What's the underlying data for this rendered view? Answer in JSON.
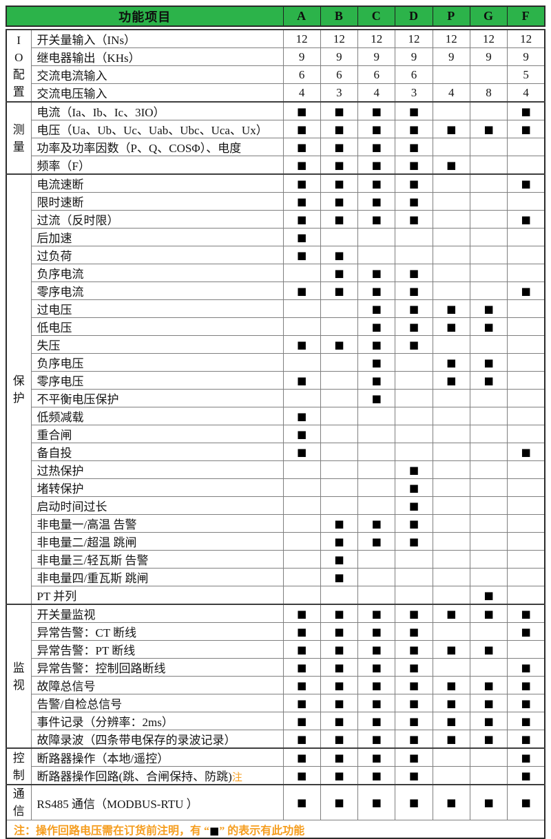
{
  "header": {
    "title": "功能项目",
    "columns": [
      "A",
      "B",
      "C",
      "D",
      "P",
      "G",
      "F"
    ]
  },
  "colors": {
    "header_bg": "#2cb34a",
    "note_orange": "#f59d1e",
    "mark_black": "#000000"
  },
  "legend_mark": "■",
  "sections": [
    {
      "key": "io",
      "group": "I\nO\n配\n置",
      "rows": [
        {
          "label": "开关量输入（INs）",
          "cells": [
            "12",
            "12",
            "12",
            "12",
            "12",
            "12",
            "12"
          ]
        },
        {
          "label": "继电器输出（KHs）",
          "cells": [
            "9",
            "9",
            "9",
            "9",
            "9",
            "9",
            "9"
          ]
        },
        {
          "label": "交流电流输入",
          "cells": [
            "6",
            "6",
            "6",
            "6",
            "",
            "",
            "5"
          ]
        },
        {
          "label": "交流电压输入",
          "cells": [
            "4",
            "3",
            "4",
            "3",
            "4",
            "8",
            "4"
          ]
        }
      ]
    },
    {
      "key": "measure",
      "group": "测\n量",
      "rows": [
        {
          "label": "电流（Ia、Ib、Ic、3IO）",
          "cells": [
            "■",
            "■",
            "■",
            "■",
            "",
            "",
            "■"
          ]
        },
        {
          "label": "电压（Ua、Ub、Uc、Uab、Ubc、Uca、Ux）",
          "cells": [
            "■",
            "■",
            "■",
            "■",
            "■",
            "■",
            "■"
          ]
        },
        {
          "label": "功率及功率因数（P、Q、COSΦ）、电度",
          "cells": [
            "■",
            "■",
            "■",
            "■",
            "",
            "",
            ""
          ]
        },
        {
          "label": "频率（F）",
          "cells": [
            "■",
            "■",
            "■",
            "■",
            "■",
            "",
            ""
          ]
        }
      ]
    },
    {
      "key": "protect",
      "group": "保\n护",
      "rows": [
        {
          "label": "电流速断",
          "cells": [
            "■",
            "■",
            "■",
            "■",
            "",
            "",
            "■"
          ]
        },
        {
          "label": "限时速断",
          "cells": [
            "■",
            "■",
            "■",
            "■",
            "",
            "",
            ""
          ]
        },
        {
          "label": "过流（反时限）",
          "cells": [
            "■",
            "■",
            "■",
            "■",
            "",
            "",
            "■"
          ]
        },
        {
          "label": "后加速",
          "cells": [
            "■",
            "",
            "",
            "",
            "",
            "",
            ""
          ]
        },
        {
          "label": "过负荷",
          "cells": [
            "■",
            "■",
            "",
            "",
            "",
            "",
            ""
          ]
        },
        {
          "label": "负序电流",
          "cells": [
            "",
            "■",
            "■",
            "■",
            "",
            "",
            ""
          ]
        },
        {
          "label": "零序电流",
          "cells": [
            "■",
            "■",
            "■",
            "■",
            "",
            "",
            "■"
          ]
        },
        {
          "label": "过电压",
          "cells": [
            "",
            "",
            "■",
            "■",
            "■",
            "■",
            ""
          ]
        },
        {
          "label": "低电压",
          "cells": [
            "",
            "",
            "■",
            "■",
            "■",
            "■",
            ""
          ]
        },
        {
          "label": "失压",
          "cells": [
            "■",
            "■",
            "■",
            "■",
            "",
            "",
            ""
          ]
        },
        {
          "label": "负序电压",
          "cells": [
            "",
            "",
            "■",
            "",
            "■",
            "■",
            ""
          ]
        },
        {
          "label": "零序电压",
          "cells": [
            "■",
            "",
            "■",
            "",
            "■",
            "■",
            ""
          ]
        },
        {
          "label": "不平衡电压保护",
          "cells": [
            "",
            "",
            "■",
            "",
            "",
            "",
            ""
          ]
        },
        {
          "label": "低频减载",
          "cells": [
            "■",
            "",
            "",
            "",
            "",
            "",
            ""
          ]
        },
        {
          "label": "重合闸",
          "cells": [
            "■",
            "",
            "",
            "",
            "",
            "",
            ""
          ]
        },
        {
          "label": "备自投",
          "cells": [
            "■",
            "",
            "",
            "",
            "",
            "",
            "■"
          ]
        },
        {
          "label": "过热保护",
          "cells": [
            "",
            "",
            "",
            "■",
            "",
            "",
            ""
          ]
        },
        {
          "label": "堵转保护",
          "cells": [
            "",
            "",
            "",
            "■",
            "",
            "",
            ""
          ]
        },
        {
          "label": "启动时间过长",
          "cells": [
            "",
            "",
            "",
            "■",
            "",
            "",
            ""
          ]
        },
        {
          "label": "非电量一/高温 告警",
          "cells": [
            "",
            "■",
            "■",
            "■",
            "",
            "",
            ""
          ]
        },
        {
          "label": "非电量二/超温 跳闸",
          "cells": [
            "",
            "■",
            "■",
            "■",
            "",
            "",
            ""
          ]
        },
        {
          "label": "非电量三/轻瓦斯 告警",
          "cells": [
            "",
            "■",
            "",
            "",
            "",
            "",
            ""
          ]
        },
        {
          "label": "非电量四/重瓦斯 跳闸",
          "cells": [
            "",
            "■",
            "",
            "",
            "",
            "",
            ""
          ]
        },
        {
          "label": "PT 并列",
          "cells": [
            "",
            "",
            "",
            "",
            "",
            "■",
            ""
          ]
        }
      ]
    },
    {
      "key": "monitor",
      "group": "监\n视",
      "rows": [
        {
          "label": "开关量监视",
          "cells": [
            "■",
            "■",
            "■",
            "■",
            "■",
            "■",
            "■"
          ]
        },
        {
          "label": "异常告警：CT 断线",
          "cells": [
            "■",
            "■",
            "■",
            "■",
            "",
            "",
            "■"
          ]
        },
        {
          "label": "异常告警：PT 断线",
          "cells": [
            "■",
            "■",
            "■",
            "■",
            "■",
            "■",
            ""
          ]
        },
        {
          "label": "异常告警：控制回路断线",
          "cells": [
            "■",
            "■",
            "■",
            "■",
            "",
            "",
            "■"
          ]
        },
        {
          "label": "故障总信号",
          "cells": [
            "■",
            "■",
            "■",
            "■",
            "■",
            "■",
            "■"
          ]
        },
        {
          "label": "告警/自检总信号",
          "cells": [
            "■",
            "■",
            "■",
            "■",
            "■",
            "■",
            "■"
          ]
        },
        {
          "label": "事件记录（分辨率：2ms）",
          "cells": [
            "■",
            "■",
            "■",
            "■",
            "■",
            "■",
            "■"
          ]
        },
        {
          "label": "故障录波（四条带电保存的录波记录）",
          "cells": [
            "■",
            "■",
            "■",
            "■",
            "■",
            "■",
            "■"
          ]
        }
      ]
    },
    {
      "key": "control",
      "group": "控\n制",
      "rows": [
        {
          "label": "断路器操作（本地/遥控）",
          "cells": [
            "■",
            "■",
            "■",
            "■",
            "",
            "",
            "■"
          ]
        },
        {
          "label": "断路器操作回路(跳、合闸保持、防跳)",
          "label_suffix": "注",
          "cells": [
            "■",
            "■",
            "■",
            "■",
            "",
            "",
            "■"
          ]
        }
      ]
    },
    {
      "key": "comm",
      "group": "通\n信",
      "rows": [
        {
          "label": "RS485 通信（MODBUS-RTU ）",
          "cells": [
            "■",
            "■",
            "■",
            "■",
            "■",
            "■",
            "■"
          ]
        }
      ]
    }
  ],
  "footnote": {
    "part1": "注：操作回路电压需在订货前注明，有 “",
    "mark": "■",
    "part2": "” 的表示有此功能"
  }
}
